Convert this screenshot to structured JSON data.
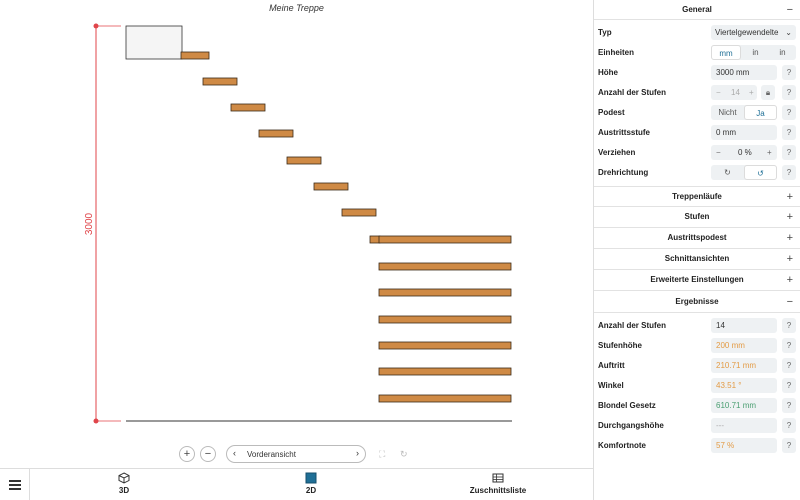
{
  "canvas": {
    "title": "Meine Treppe",
    "dimension_label": "3000",
    "view_select": {
      "label": "Vorderansicht",
      "prev": "‹",
      "next": "›"
    },
    "zoom_in": "+",
    "zoom_out": "−"
  },
  "bottombar": {
    "tabs": [
      {
        "label": "3D",
        "icon": "cube-icon"
      },
      {
        "label": "2D",
        "icon": "square-icon"
      },
      {
        "label": "Zuschnittsliste",
        "icon": "table-icon"
      }
    ],
    "active_tab": "2D"
  },
  "panel": {
    "general": {
      "title": "General",
      "toggle": "−",
      "typ_label": "Typ",
      "typ_value": "Viertelgewendelte",
      "einheiten_label": "Einheiten",
      "einheiten_options": [
        "mm",
        "in",
        "in"
      ],
      "einheiten_selected": "mm",
      "hoehe_label": "Höhe",
      "hoehe_value": "3000 mm",
      "anzahl_label": "Anzahl der Stufen",
      "anzahl_value": "14",
      "anzahl_minus": "−",
      "anzahl_plus": "+",
      "podest_label": "Podest",
      "podest_options": [
        "Nicht",
        "Ja"
      ],
      "podest_selected": "Ja",
      "austritt_label": "Austrittsstufe",
      "austritt_value": "0 mm",
      "verziehen_label": "Verziehen",
      "verziehen_value": "0 %",
      "verziehen_minus": "−",
      "verziehen_plus": "+",
      "dreh_label": "Drehrichtung",
      "dreh_options": [
        "↻",
        "↺"
      ],
      "help": "?"
    },
    "collapsed_sections": [
      {
        "title": "Treppenläufe",
        "toggle": "+"
      },
      {
        "title": "Stufen",
        "toggle": "+"
      },
      {
        "title": "Austrittspodest",
        "toggle": "+"
      },
      {
        "title": "Schnittansichten",
        "toggle": "+"
      },
      {
        "title": "Erweiterte Einstellungen",
        "toggle": "+"
      }
    ],
    "results": {
      "title": "Ergebnisse",
      "toggle": "−",
      "rows": [
        {
          "label": "Anzahl der Stufen",
          "value": "14",
          "tone": "normal"
        },
        {
          "label": "Stufenhöhe",
          "value": "200 mm",
          "tone": "orange"
        },
        {
          "label": "Auftritt",
          "value": "210.71 mm",
          "tone": "orange"
        },
        {
          "label": "Winkel",
          "value": "43.51 °",
          "tone": "orange"
        },
        {
          "label": "Blondel Gesetz",
          "value": "610.71 mm",
          "tone": "green"
        },
        {
          "label": "Durchgangshöhe",
          "value": "---",
          "tone": "muted"
        },
        {
          "label": "Komfortnote",
          "value": "57 %",
          "tone": "orange"
        }
      ]
    }
  },
  "colors": {
    "tread_fill": "#cf8a45",
    "tread_stroke": "#3a2a18",
    "dimension": "#e0454a",
    "accent": "#1f6f96"
  }
}
